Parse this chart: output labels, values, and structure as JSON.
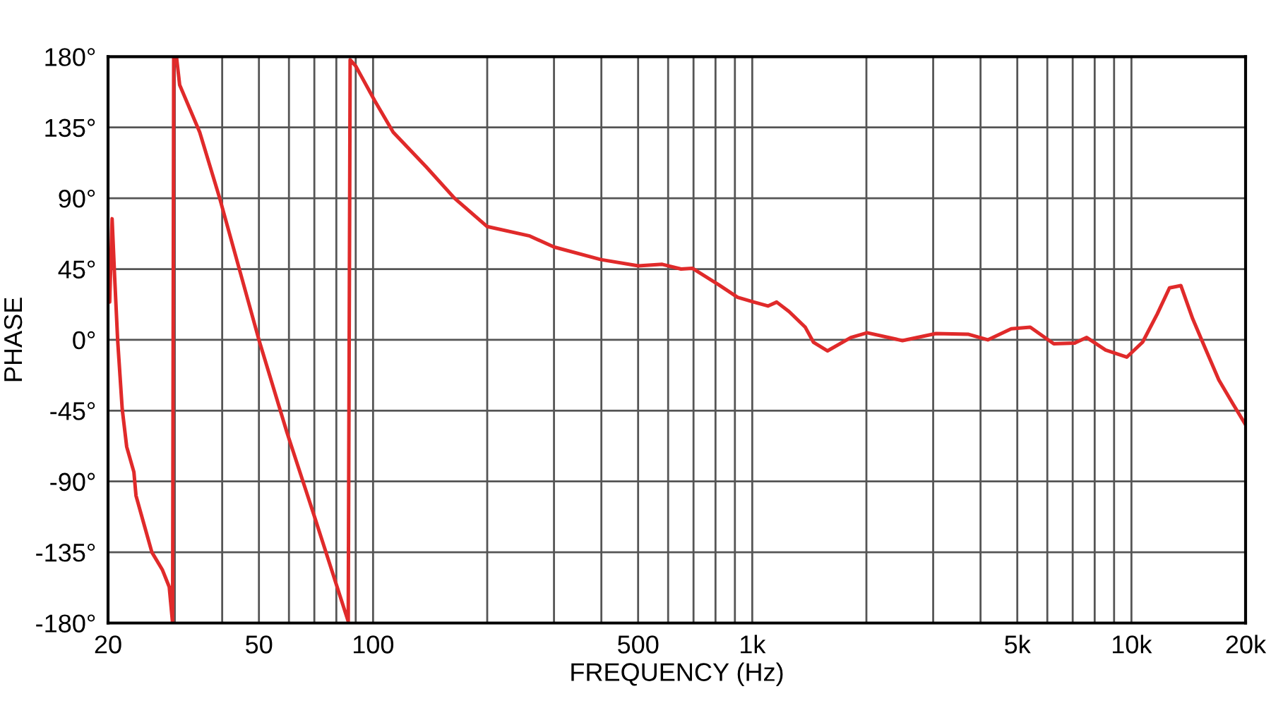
{
  "chart_data": {
    "type": "line",
    "xlabel": "FREQUENCY (Hz)",
    "ylabel": "PHASE",
    "log": "x",
    "grid": true,
    "marker": "none",
    "line_style": "solid",
    "xlim": [
      20,
      20000
    ],
    "ylim": [
      -180,
      180
    ],
    "xticks": [
      {
        "value": 20,
        "label": "20"
      },
      {
        "value": 30,
        "label": null
      },
      {
        "value": 40,
        "label": null
      },
      {
        "value": 50,
        "label": "50"
      },
      {
        "value": 60,
        "label": null
      },
      {
        "value": 70,
        "label": null
      },
      {
        "value": 80,
        "label": null
      },
      {
        "value": 90,
        "label": null
      },
      {
        "value": 100,
        "label": "100"
      },
      {
        "value": 200,
        "label": null
      },
      {
        "value": 300,
        "label": null
      },
      {
        "value": 400,
        "label": null
      },
      {
        "value": 500,
        "label": "500"
      },
      {
        "value": 600,
        "label": null
      },
      {
        "value": 700,
        "label": null
      },
      {
        "value": 800,
        "label": null
      },
      {
        "value": 900,
        "label": null
      },
      {
        "value": 1000,
        "label": "1k"
      },
      {
        "value": 2000,
        "label": null
      },
      {
        "value": 3000,
        "label": null
      },
      {
        "value": 4000,
        "label": null
      },
      {
        "value": 5000,
        "label": "5k"
      },
      {
        "value": 6000,
        "label": null
      },
      {
        "value": 7000,
        "label": null
      },
      {
        "value": 8000,
        "label": null
      },
      {
        "value": 9000,
        "label": null
      },
      {
        "value": 10000,
        "label": "10k"
      },
      {
        "value": 20000,
        "label": "20k"
      }
    ],
    "yticks": [
      {
        "value": -180,
        "label": "-180°"
      },
      {
        "value": -135,
        "label": "-135°"
      },
      {
        "value": -90,
        "label": "-90°"
      },
      {
        "value": -45,
        "label": "-45°"
      },
      {
        "value": 0,
        "label": "0°"
      },
      {
        "value": 45,
        "label": "45°"
      },
      {
        "value": 90,
        "label": "90°"
      },
      {
        "value": 135,
        "label": "135°"
      },
      {
        "value": 180,
        "label": "180°"
      }
    ],
    "series": [
      {
        "color": "#e02a2a",
        "x": [
          20,
          20.2,
          20.5,
          20.8,
          21.2,
          21.8,
          22.4,
          23.4,
          23.7,
          24.8,
          26.1,
          27.8,
          29,
          29.6,
          29.8,
          30.3,
          30.9,
          34.9,
          39.4,
          50,
          59.3,
          70.2,
          86,
          87,
          90,
          101,
          113,
          138,
          164,
          200,
          259,
          300,
          399,
          501,
          579,
          649,
          695,
          816,
          915,
          1010,
          1100,
          1160,
          1250,
          1380,
          1450,
          1580,
          1820,
          2010,
          2490,
          3050,
          3720,
          4180,
          4820,
          5410,
          6240,
          7090,
          7620,
          8550,
          9720,
          10700,
          11700,
          12600,
          13500,
          14500,
          15600,
          17000,
          18500,
          20000
        ],
        "values": [
          55,
          24,
          77,
          42,
          0,
          -44,
          -68,
          -84,
          -99,
          -116,
          -135,
          -146,
          -157,
          -180,
          180,
          180,
          162,
          132,
          90,
          0,
          -59,
          -113,
          -179,
          178,
          174,
          152,
          132,
          110,
          90,
          72,
          66,
          59,
          51,
          47,
          48,
          45,
          45.5,
          35,
          27,
          24,
          21.5,
          24,
          18,
          8,
          -1.5,
          -7,
          1.5,
          4.5,
          -0.5,
          4,
          3.5,
          0,
          7,
          8,
          -2.5,
          -2,
          1.5,
          -6.5,
          -11,
          -1.5,
          16.5,
          33,
          34.5,
          13.5,
          -4.5,
          -25.5,
          -40.5,
          -54
        ]
      }
    ]
  }
}
